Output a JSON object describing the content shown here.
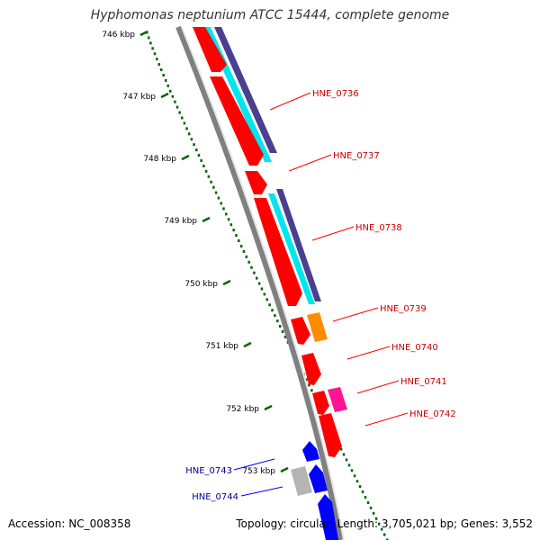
{
  "title": "Hyphomonas neptunium ATCC 15444, complete genome",
  "accession": "Accession: NC_008358",
  "summary": "Topology: circular; Length: 3,705,021 bp; Genes: 3,552",
  "colors": {
    "forward_gene": "#ff0000",
    "reverse_gene": "#0000ff",
    "cds_cyan": "#00e5ee",
    "cds_navy": "#4b3f8f",
    "orange": "#ff8c00",
    "magenta": "#ff1493",
    "gray_feature": "#b4b4b4",
    "backbone": "#808080",
    "ruler": "#006400",
    "forward_label": "#cc0000",
    "reverse_label": "#000099"
  },
  "ticks": [
    "746 kbp",
    "747 kbp",
    "748 kbp",
    "749 kbp",
    "750 kbp",
    "751 kbp",
    "752 kbp",
    "753 kbp"
  ],
  "forward_labels": [
    "HNE_0736",
    "HNE_0737",
    "HNE_0738",
    "HNE_0739",
    "HNE_0740",
    "HNE_0741",
    "HNE_0742"
  ],
  "reverse_labels": [
    "HNE_0743",
    "HNE_0744"
  ]
}
